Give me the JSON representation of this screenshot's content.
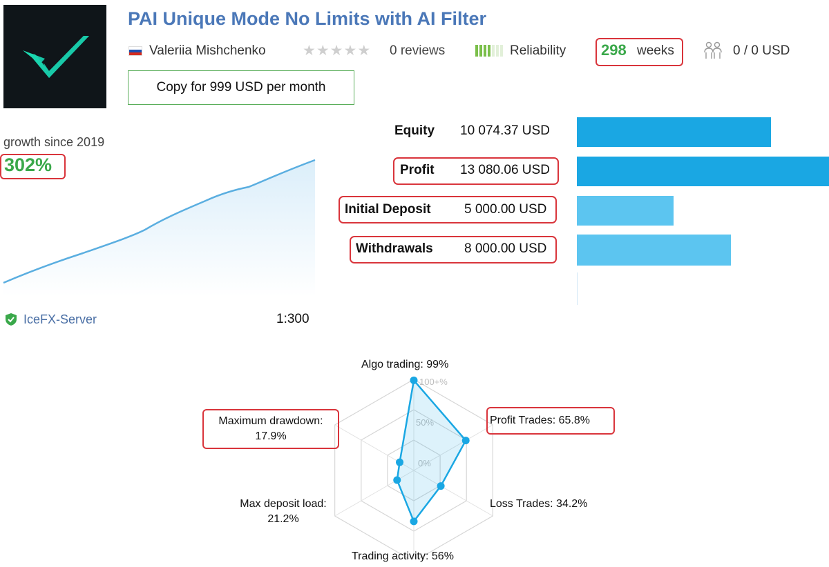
{
  "header": {
    "title": "PAI Unique Mode No Limits with AI Filter",
    "author": "Valeriia Mishchenko",
    "rating": {
      "stars": 0,
      "max": 5,
      "reviews_label": "0 reviews"
    },
    "reliability": {
      "label": "Reliability",
      "level": 4,
      "max": 7
    },
    "weeks": {
      "value": "298",
      "label": "weeks"
    },
    "subscribers": "0 / 0 USD",
    "copy_button": "Copy for 999 USD per month",
    "icons": {
      "logo": "checkmark-logo",
      "flag": "russia-flag-icon",
      "subscribers": "people-icon"
    }
  },
  "growth": {
    "label": "growth since 2019",
    "value": "302%",
    "line_color": "#5aaee0"
  },
  "server": {
    "name": "IceFX-Server",
    "leverage": "1:300",
    "icon": "verified-shield-icon"
  },
  "account": {
    "stats": [
      {
        "label": "Equity",
        "value": "10 074.37 USD",
        "amount": 10074.37,
        "highlighted": false,
        "color": "#1aa7e3"
      },
      {
        "label": "Profit",
        "value": "13 080.06 USD",
        "amount": 13080.06,
        "highlighted": true,
        "color": "#1aa7e3"
      },
      {
        "label": "Initial Deposit",
        "value": "5 000.00 USD",
        "amount": 5000.0,
        "highlighted": true,
        "color": "#5cc5f0"
      },
      {
        "label": "Withdrawals",
        "value": "8 000.00 USD",
        "amount": 8000.0,
        "highlighted": true,
        "color": "#5cc5f0"
      }
    ]
  },
  "chart_data": {
    "type": "radar",
    "axes": [
      {
        "label": "Algo trading: 99%",
        "value": 99
      },
      {
        "label": "Profit Trades: 65.8%",
        "value": 65.8
      },
      {
        "label": "Loss Trades: 34.2%",
        "value": 34.2
      },
      {
        "label": "Trading activity: 56%",
        "value": 56
      },
      {
        "label": "Max deposit load:\n21.2%",
        "value": 21.2
      },
      {
        "label": "Maximum drawdown:\n17.9%",
        "value": 17.9
      }
    ],
    "scale_labels": [
      "100+%",
      "50%",
      "0%"
    ],
    "range": [
      0,
      100
    ],
    "highlighted": [
      "Profit Trades: 65.8%",
      "Maximum drawdown:\n17.9%"
    ],
    "line_color": "#1aa7e3",
    "grid": true
  }
}
